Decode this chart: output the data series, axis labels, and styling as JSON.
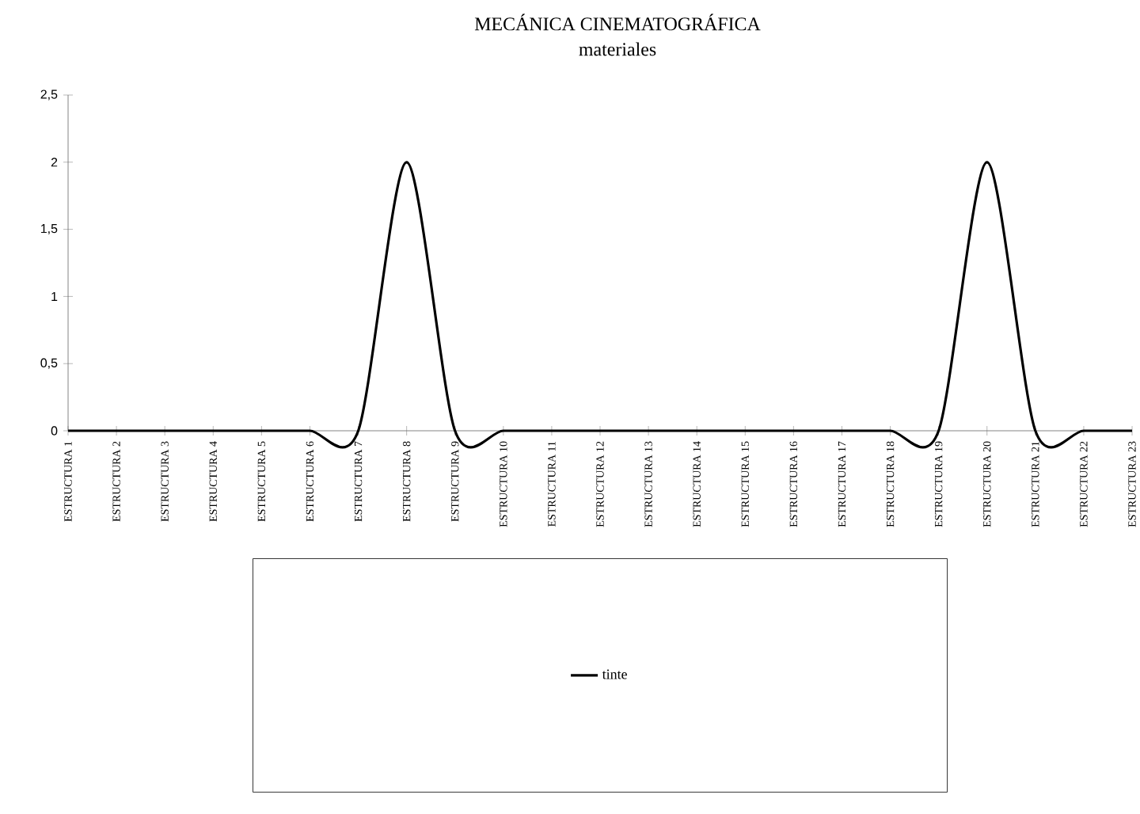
{
  "chart_data": {
    "type": "line",
    "title": "MECÁNICA CINEMATOGRÁFICA",
    "subtitle": "materiales",
    "categories": [
      "ESTRUCTURA 1",
      "ESTRUCTURA 2",
      "ESTRUCTURA 3",
      "ESTRUCTURA 4",
      "ESTRUCTURA 5",
      "ESTRUCTURA 6",
      "ESTRUCTURA 7",
      "ESTRUCTURA 8",
      "ESTRUCTURA 9",
      "ESTRUCTURA 10",
      "ESTRUCTURA 11",
      "ESTRUCTURA 12",
      "ESTRUCTURA 13",
      "ESTRUCTURA 14",
      "ESTRUCTURA 15",
      "ESTRUCTURA 16",
      "ESTRUCTURA 17",
      "ESTRUCTURA 18",
      "ESTRUCTURA 19",
      "ESTRUCTURA 20",
      "ESTRUCTURA 21",
      "ESTRUCTURA 22",
      "ESTRUCTURA 23"
    ],
    "series": [
      {
        "name": "tinte",
        "color": "#000000",
        "values": [
          0,
          0,
          0,
          0,
          0,
          0,
          0,
          2,
          0,
          0,
          0,
          0,
          0,
          0,
          0,
          0,
          0,
          0,
          0,
          2,
          0,
          0,
          0
        ]
      }
    ],
    "ylim": [
      0,
      2.5
    ],
    "yticks": [
      0,
      {
        "value": 0.5,
        "label": "0,5"
      },
      1,
      {
        "value": 1.5,
        "label": "1,5"
      },
      2,
      {
        "value": 2.5,
        "label": "2,5"
      }
    ],
    "grid": false,
    "legend": "bottom",
    "marker": "none",
    "line_style": "solid"
  }
}
